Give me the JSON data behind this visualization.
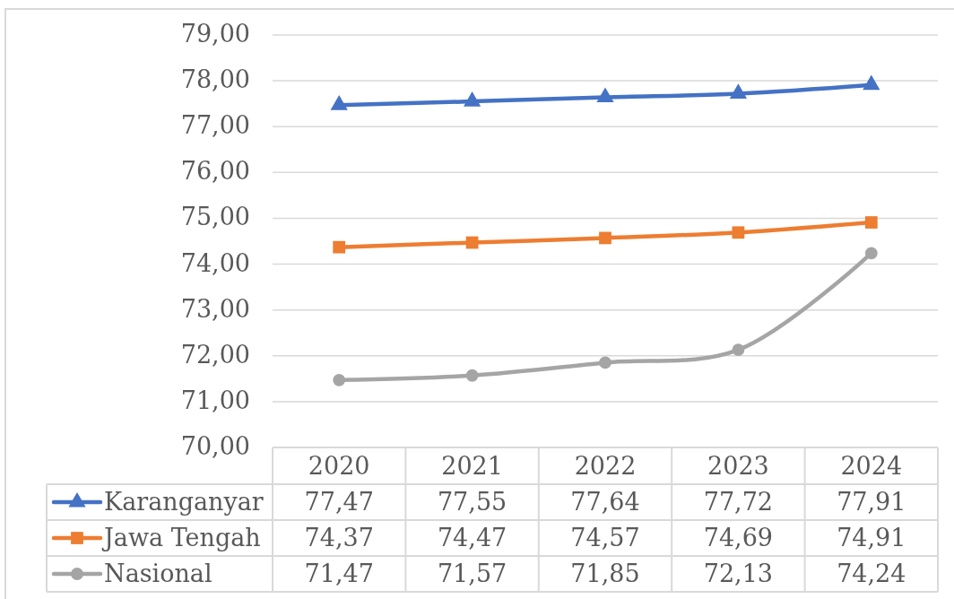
{
  "chart_data": {
    "type": "line",
    "categories": [
      "2020",
      "2021",
      "2022",
      "2023",
      "2024"
    ],
    "ylim": [
      70,
      79
    ],
    "yticks": [
      {
        "value": 70,
        "label": "70,00"
      },
      {
        "value": 71,
        "label": "71,00"
      },
      {
        "value": 72,
        "label": "72,00"
      },
      {
        "value": 73,
        "label": "73,00"
      },
      {
        "value": 74,
        "label": "74,00"
      },
      {
        "value": 75,
        "label": "75,00"
      },
      {
        "value": 76,
        "label": "76,00"
      },
      {
        "value": 77,
        "label": "77,00"
      },
      {
        "value": 78,
        "label": "78,00"
      },
      {
        "value": 79,
        "label": "79,00"
      }
    ],
    "grid": "y",
    "legend": "bottom",
    "series": [
      {
        "name": "Karanganyar",
        "color": "#4472c4",
        "marker": "triangle",
        "values": [
          77.47,
          77.55,
          77.64,
          77.72,
          77.91
        ],
        "value_labels": [
          "77,47",
          "77,55",
          "77,64",
          "77,72",
          "77,91"
        ]
      },
      {
        "name": "Jawa Tengah",
        "color": "#ed7d31",
        "marker": "square",
        "values": [
          74.37,
          74.47,
          74.57,
          74.69,
          74.91
        ],
        "value_labels": [
          "74,37",
          "74,47",
          "74,57",
          "74,69",
          "74,91"
        ]
      },
      {
        "name": "Nasional",
        "color": "#a5a5a5",
        "marker": "circle",
        "values": [
          71.47,
          71.57,
          71.85,
          72.13,
          74.24
        ],
        "value_labels": [
          "71,47",
          "71,57",
          "71,85",
          "72,13",
          "74,24"
        ]
      }
    ]
  }
}
